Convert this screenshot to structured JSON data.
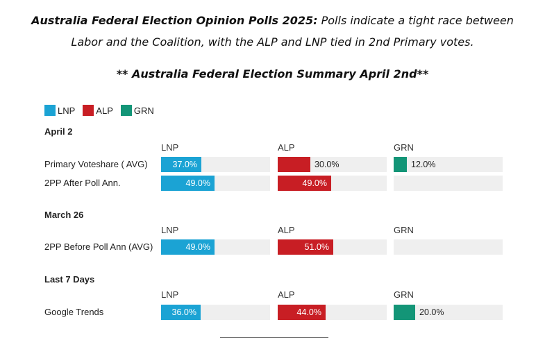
{
  "intro": {
    "bold": "Australia Federal Election Opinion Polls 2025:",
    "text": " Polls indicate a tight race between Labor and the Coalition, with the ALP and LNP tied in 2nd Primary votes."
  },
  "subtitle": "** Australia Federal Election Summary April 2nd**",
  "legend": [
    {
      "name": "LNP",
      "color": "#1ba3d4"
    },
    {
      "name": "ALP",
      "color": "#c81e24"
    },
    {
      "name": "GRN",
      "color": "#139577"
    }
  ],
  "chart_data": {
    "type": "bar",
    "title": "** Australia Federal Election Summary April 2nd**",
    "parties": [
      "LNP",
      "ALP",
      "GRN"
    ],
    "colors": {
      "LNP": "#1ba3d4",
      "ALP": "#c81e24",
      "GRN": "#139577"
    },
    "xlim": [
      0,
      100
    ],
    "value_suffix": "%",
    "sections": [
      {
        "title": "April 2",
        "rows": [
          {
            "label": "Primary Voteshare ( AVG)",
            "values": {
              "LNP": 37.0,
              "ALP": 30.0,
              "GRN": 12.0
            }
          },
          {
            "label": "2PP After Poll Ann.",
            "values": {
              "LNP": 49.0,
              "ALP": 49.0,
              "GRN": null
            }
          }
        ]
      },
      {
        "title": "March 26",
        "rows": [
          {
            "label": "2PP Before Poll Ann (AVG)",
            "values": {
              "LNP": 49.0,
              "ALP": 51.0,
              "GRN": null
            }
          }
        ]
      },
      {
        "title": "Last 7 Days",
        "rows": [
          {
            "label": "Google Trends",
            "values": {
              "LNP": 36.0,
              "ALP": 44.0,
              "GRN": 20.0
            }
          }
        ]
      }
    ]
  }
}
